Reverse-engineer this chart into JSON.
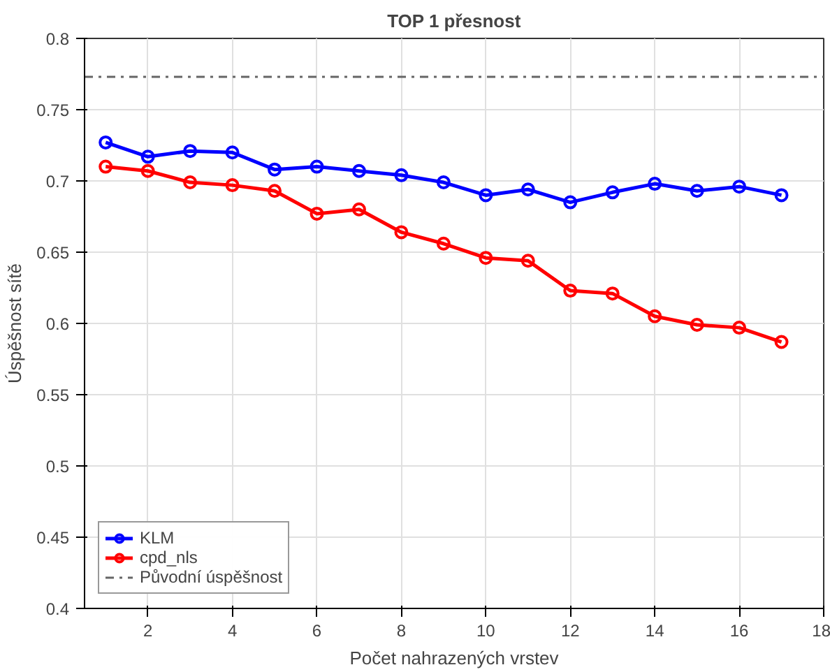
{
  "chart_data": {
    "type": "line",
    "title": "TOP 1 přesnost",
    "xlabel": "Počet nahrazených vrstev",
    "ylabel": "Úspěšnost sítě",
    "x": [
      1,
      2,
      3,
      4,
      5,
      6,
      7,
      8,
      9,
      10,
      11,
      12,
      13,
      14,
      15,
      16,
      17
    ],
    "series": [
      {
        "name": "KLM",
        "color": "#0000ff",
        "values": [
          0.727,
          0.717,
          0.721,
          0.72,
          0.708,
          0.71,
          0.707,
          0.704,
          0.699,
          0.69,
          0.694,
          0.685,
          0.692,
          0.698,
          0.693,
          0.696,
          0.69
        ]
      },
      {
        "name": "cpd_nls",
        "color": "#ff0000",
        "values": [
          0.71,
          0.707,
          0.699,
          0.697,
          0.693,
          0.677,
          0.68,
          0.664,
          0.656,
          0.646,
          0.644,
          0.623,
          0.621,
          0.605,
          0.599,
          0.597,
          0.587
        ]
      }
    ],
    "ref_lines": [
      {
        "axis": "y",
        "value": 0.773,
        "label": "Původní úspěšnost",
        "color": "#666666",
        "line_style": "dashdot"
      }
    ],
    "xlim": [
      0.5,
      18
    ],
    "xticks": [
      2,
      4,
      6,
      8,
      10,
      12,
      14,
      16,
      18
    ],
    "ylim": [
      0.4,
      0.8
    ],
    "yticks": [
      0.4,
      0.45,
      0.5,
      0.55,
      0.6,
      0.65,
      0.7,
      0.75,
      0.8
    ],
    "grid": true,
    "legend": "bottom left",
    "marker": "circle",
    "line_style": "solid"
  }
}
